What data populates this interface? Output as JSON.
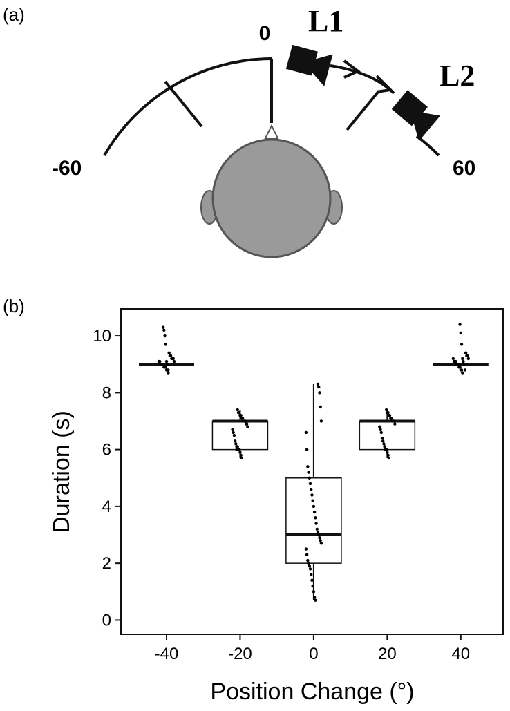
{
  "panel_a": {
    "label": "(a)",
    "zero": "0",
    "left_limit": "-60",
    "right_limit": "60",
    "speaker_1": "L1",
    "speaker_2": "L2"
  },
  "chart_data": {
    "type": "box",
    "panel_label": "(b)",
    "xlabel": "Position Change (°)",
    "ylabel": "Duration (s)",
    "xlim": [
      -52.4,
      51.5
    ],
    "ylim": [
      -0.5,
      10.95
    ],
    "xticks": [
      -40,
      -20,
      0,
      20,
      40
    ],
    "yticks": [
      0,
      2,
      4,
      6,
      8,
      10
    ],
    "color": "#000000",
    "boxes": [
      {
        "x": -40,
        "q1": 9,
        "median": 9,
        "q3": 9,
        "whisker_low": 9,
        "whisker_high": 9,
        "points": [
          8.7,
          8.8,
          8.8,
          8.9,
          8.9,
          8.9,
          9.0,
          9.0,
          9.0,
          9.0,
          9.1,
          9.1,
          9.1,
          9.2,
          9.2,
          9.2,
          9.3,
          9.3,
          9.4,
          8.8,
          9.0,
          9.1,
          9.7,
          10.0,
          10.2,
          10.3
        ]
      },
      {
        "x": -20,
        "q1": 6,
        "median": 7,
        "q3": 7,
        "whisker_low": 5.7,
        "whisker_high": 7.4,
        "points": [
          5.7,
          5.8,
          5.9,
          6.0,
          6.0,
          6.1,
          6.1,
          6.2,
          6.3,
          6.5,
          6.6,
          6.7,
          6.8,
          6.9,
          6.9,
          7.0,
          7.0,
          7.0,
          7.1,
          7.1,
          7.2,
          7.2,
          7.3,
          7.3,
          7.4,
          6.0
        ]
      },
      {
        "x": 0,
        "q1": 2,
        "median": 3,
        "q3": 5,
        "whisker_low": 0.7,
        "whisker_high": 8.3,
        "points": [
          0.7,
          0.8,
          1.0,
          1.2,
          1.4,
          1.6,
          1.8,
          1.9,
          2.0,
          2.1,
          2.3,
          2.5,
          2.7,
          2.8,
          2.9,
          3.0,
          3.1,
          3.2,
          3.4,
          3.6,
          3.8,
          4.0,
          4.2,
          4.4,
          4.6,
          4.8,
          5.0,
          5.2,
          5.4,
          6.0,
          6.6,
          7.0,
          7.5,
          8.0,
          8.2,
          8.3
        ]
      },
      {
        "x": 20,
        "q1": 6,
        "median": 7,
        "q3": 7,
        "whisker_low": 5.7,
        "whisker_high": 7.4,
        "points": [
          5.7,
          5.8,
          5.9,
          6.0,
          6.0,
          6.1,
          6.2,
          6.3,
          6.4,
          6.6,
          6.7,
          6.8,
          6.9,
          7.0,
          7.0,
          7.0,
          7.1,
          7.1,
          7.2,
          7.2,
          7.3,
          7.3,
          7.4,
          6.0,
          6.1
        ]
      },
      {
        "x": 40,
        "q1": 9,
        "median": 9,
        "q3": 9,
        "whisker_low": 9,
        "whisker_high": 9,
        "points": [
          8.7,
          8.8,
          8.8,
          8.9,
          8.9,
          9.0,
          9.0,
          9.0,
          9.1,
          9.1,
          9.1,
          9.2,
          9.2,
          9.3,
          9.3,
          9.4,
          8.8,
          9.0,
          9.1,
          9.2,
          9.7,
          10.1,
          10.4
        ]
      }
    ]
  }
}
